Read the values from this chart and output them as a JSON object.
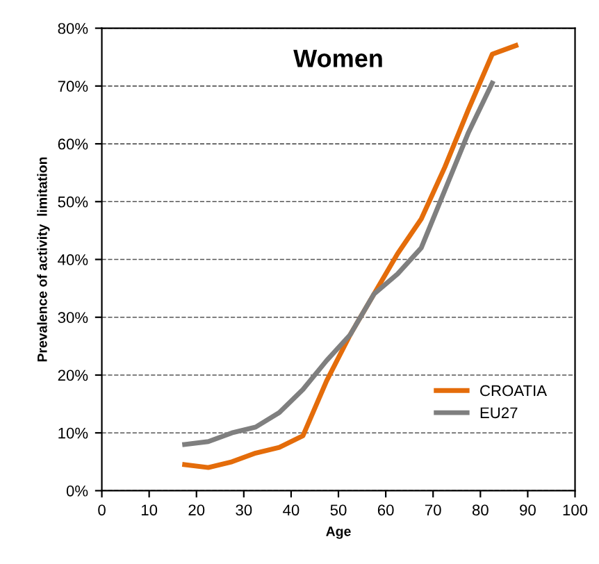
{
  "chart_data": {
    "type": "line",
    "title": "Women",
    "xlabel": "Age",
    "ylabel": "Prevalence of activity  limitation",
    "xlim": [
      0,
      100
    ],
    "xticks": [
      0,
      10,
      20,
      30,
      40,
      50,
      60,
      70,
      80,
      90,
      100
    ],
    "ylim": [
      0,
      80
    ],
    "yticks": [
      {
        "value": 0,
        "label": "0%"
      },
      {
        "value": 10,
        "label": "10%"
      },
      {
        "value": 20,
        "label": "20%"
      },
      {
        "value": 30,
        "label": "30%"
      },
      {
        "value": 40,
        "label": "40%"
      },
      {
        "value": 50,
        "label": "50%"
      },
      {
        "value": 60,
        "label": "60%"
      },
      {
        "value": 70,
        "label": "70%"
      },
      {
        "value": 80,
        "label": "80%"
      }
    ],
    "grid": "y",
    "legend": "bottom right",
    "marker": "none",
    "line_style": "solid",
    "series": [
      {
        "name": "CROATIA",
        "color": "#e46c0a",
        "x": [
          17.5,
          22.5,
          27.5,
          32.5,
          37.5,
          42.5,
          47.5,
          52.5,
          57.5,
          62.5,
          67.5,
          72.5,
          77.5,
          82.5,
          87.5
        ],
        "values": [
          4.5,
          4,
          5,
          6.5,
          7.5,
          9.5,
          19,
          27,
          34,
          41,
          47,
          56,
          66,
          75.5,
          77
        ]
      },
      {
        "name": "EU27",
        "color": "#7f7f7f",
        "x": [
          17.5,
          22.5,
          27.5,
          32.5,
          37.5,
          42.5,
          47.5,
          52.5,
          57.5,
          62.5,
          67.5,
          72.5,
          77.5,
          82.5
        ],
        "values": [
          8,
          8.5,
          10,
          11,
          13.5,
          17.5,
          22.5,
          27,
          34,
          37.5,
          42,
          52,
          62,
          70.5
        ]
      }
    ]
  }
}
